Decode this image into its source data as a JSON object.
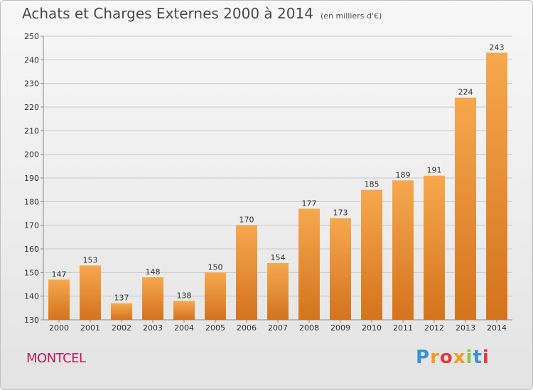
{
  "header": {
    "title": "Achats et Charges Externes 2000 à 2014",
    "subtitle": "(en milliers d'€)"
  },
  "footer": {
    "commune": "MONTCEL",
    "logo_text": "Proxiti",
    "logo_colors": [
      "#3a8fd9",
      "#f29c1f",
      "#e23c3c",
      "#f29c1f",
      "#8cc63f",
      "#3a8fd9",
      "#e23c3c"
    ]
  },
  "colors": {
    "bar_top": "#f6a84e",
    "bar_bottom": "#d4731c",
    "grid": "#c8c8c8",
    "axis": "#888888"
  },
  "chart_data": {
    "type": "bar",
    "title": "Achats et Charges Externes 2000 à 2014",
    "subtitle": "(en milliers d'€)",
    "categories": [
      "2000",
      "2001",
      "2002",
      "2003",
      "2004",
      "2005",
      "2006",
      "2007",
      "2008",
      "2009",
      "2010",
      "2011",
      "2012",
      "2013",
      "2014"
    ],
    "values": [
      147,
      153,
      137,
      148,
      138,
      150,
      170,
      154,
      177,
      173,
      185,
      189,
      191,
      224,
      243
    ],
    "ylim": [
      130,
      250
    ],
    "yticks": [
      130,
      140,
      150,
      160,
      170,
      180,
      190,
      200,
      210,
      220,
      230,
      240,
      250
    ],
    "grid": true,
    "xlabel": "",
    "ylabel": ""
  }
}
